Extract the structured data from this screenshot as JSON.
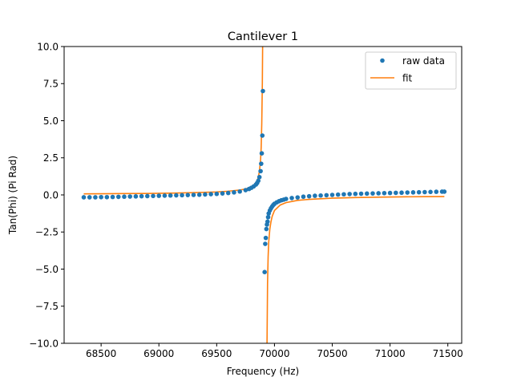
{
  "chart_data": {
    "type": "scatter",
    "title": "Cantilever 1",
    "xlabel": "Frequency (Hz)",
    "ylabel": "Tan(Phi) (Pi Rad)",
    "xlim": [
      68180,
      71620
    ],
    "ylim": [
      -10,
      10
    ],
    "x_ticks": [
      68500,
      69000,
      69500,
      70000,
      70500,
      71000,
      71500
    ],
    "x_tick_labels": [
      "68500",
      "69000",
      "69500",
      "70000",
      "70500",
      "71000",
      "71500"
    ],
    "y_ticks": [
      -10,
      -7.5,
      -5,
      -2.5,
      0,
      2.5,
      5,
      7.5,
      10
    ],
    "y_tick_labels": [
      "−10.0",
      "−7.5",
      "−5.0",
      "−2.5",
      "0.0",
      "2.5",
      "5.0",
      "7.5",
      "10.0"
    ],
    "grid": false,
    "legend": "top-right",
    "series": [
      {
        "name": "raw data",
        "kind": "markers",
        "color": "#1f77b4",
        "points": [
          [
            68350,
            -0.16
          ],
          [
            68400,
            -0.16
          ],
          [
            68450,
            -0.16
          ],
          [
            68500,
            -0.15
          ],
          [
            68550,
            -0.15
          ],
          [
            68600,
            -0.14
          ],
          [
            68650,
            -0.13
          ],
          [
            68700,
            -0.12
          ],
          [
            68750,
            -0.11
          ],
          [
            68800,
            -0.1
          ],
          [
            68850,
            -0.09
          ],
          [
            68900,
            -0.08
          ],
          [
            68950,
            -0.07
          ],
          [
            69000,
            -0.06
          ],
          [
            69050,
            -0.05
          ],
          [
            69100,
            -0.04
          ],
          [
            69150,
            -0.03
          ],
          [
            69200,
            -0.02
          ],
          [
            69250,
            -0.01
          ],
          [
            69300,
            0.0
          ],
          [
            69350,
            0.01
          ],
          [
            69400,
            0.03
          ],
          [
            69450,
            0.05
          ],
          [
            69500,
            0.07
          ],
          [
            69550,
            0.1
          ],
          [
            69600,
            0.13
          ],
          [
            69650,
            0.17
          ],
          [
            69700,
            0.23
          ],
          [
            69750,
            0.32
          ],
          [
            69780,
            0.4
          ],
          [
            69800,
            0.48
          ],
          [
            69820,
            0.57
          ],
          [
            69840,
            0.7
          ],
          [
            69850,
            0.8
          ],
          [
            69860,
            0.95
          ],
          [
            69870,
            1.2
          ],
          [
            69880,
            1.6
          ],
          [
            69885,
            2.1
          ],
          [
            69890,
            2.8
          ],
          [
            69895,
            4.0
          ],
          [
            69900,
            7.0
          ],
          [
            69915,
            -5.2
          ],
          [
            69920,
            -3.3
          ],
          [
            69925,
            -2.9
          ],
          [
            69930,
            -2.3
          ],
          [
            69935,
            -2.0
          ],
          [
            69940,
            -1.8
          ],
          [
            69945,
            -1.5
          ],
          [
            69950,
            -1.25
          ],
          [
            69960,
            -1.05
          ],
          [
            69970,
            -0.9
          ],
          [
            69980,
            -0.78
          ],
          [
            69990,
            -0.68
          ],
          [
            70000,
            -0.6
          ],
          [
            70020,
            -0.5
          ],
          [
            70040,
            -0.42
          ],
          [
            70060,
            -0.36
          ],
          [
            70080,
            -0.32
          ],
          [
            70100,
            -0.27
          ],
          [
            70150,
            -0.21
          ],
          [
            70200,
            -0.17
          ],
          [
            70250,
            -0.12
          ],
          [
            70300,
            -0.09
          ],
          [
            70350,
            -0.06
          ],
          [
            70400,
            -0.04
          ],
          [
            70450,
            -0.02
          ],
          [
            70500,
            0.0
          ],
          [
            70550,
            0.02
          ],
          [
            70600,
            0.04
          ],
          [
            70650,
            0.06
          ],
          [
            70700,
            0.07
          ],
          [
            70750,
            0.08
          ],
          [
            70800,
            0.09
          ],
          [
            70850,
            0.1
          ],
          [
            70900,
            0.11
          ],
          [
            70950,
            0.12
          ],
          [
            71000,
            0.13
          ],
          [
            71050,
            0.14
          ],
          [
            71100,
            0.15
          ],
          [
            71150,
            0.16
          ],
          [
            71200,
            0.17
          ],
          [
            71250,
            0.18
          ],
          [
            71300,
            0.19
          ],
          [
            71350,
            0.2
          ],
          [
            71400,
            0.21
          ],
          [
            71450,
            0.22
          ],
          [
            71470,
            0.22
          ]
        ]
      },
      {
        "name": "fit",
        "kind": "line",
        "color": "#ff7f0e",
        "points": [
          [
            68350,
            0.07
          ],
          [
            68500,
            0.08
          ],
          [
            68700,
            0.09
          ],
          [
            68900,
            0.1
          ],
          [
            69100,
            0.12
          ],
          [
            69300,
            0.15
          ],
          [
            69500,
            0.2
          ],
          [
            69600,
            0.25
          ],
          [
            69700,
            0.33
          ],
          [
            69750,
            0.4
          ],
          [
            69800,
            0.55
          ],
          [
            69830,
            0.72
          ],
          [
            69850,
            0.95
          ],
          [
            69860,
            1.2
          ],
          [
            69870,
            1.6
          ],
          [
            69880,
            2.4
          ],
          [
            69885,
            3.2
          ],
          [
            69890,
            4.8
          ],
          [
            69895,
            7.5
          ],
          [
            69898,
            10.5
          ],
          [
            69935,
            -10.5
          ],
          [
            69940,
            -6.0
          ],
          [
            69945,
            -4.2
          ],
          [
            69950,
            -3.2
          ],
          [
            69960,
            -2.3
          ],
          [
            69970,
            -1.8
          ],
          [
            69980,
            -1.45
          ],
          [
            70000,
            -1.05
          ],
          [
            70050,
            -0.68
          ],
          [
            70100,
            -0.52
          ],
          [
            70200,
            -0.37
          ],
          [
            70300,
            -0.3
          ],
          [
            70500,
            -0.22
          ],
          [
            70700,
            -0.18
          ],
          [
            70900,
            -0.15
          ],
          [
            71100,
            -0.13
          ],
          [
            71300,
            -0.12
          ],
          [
            71470,
            -0.11
          ]
        ]
      }
    ]
  }
}
